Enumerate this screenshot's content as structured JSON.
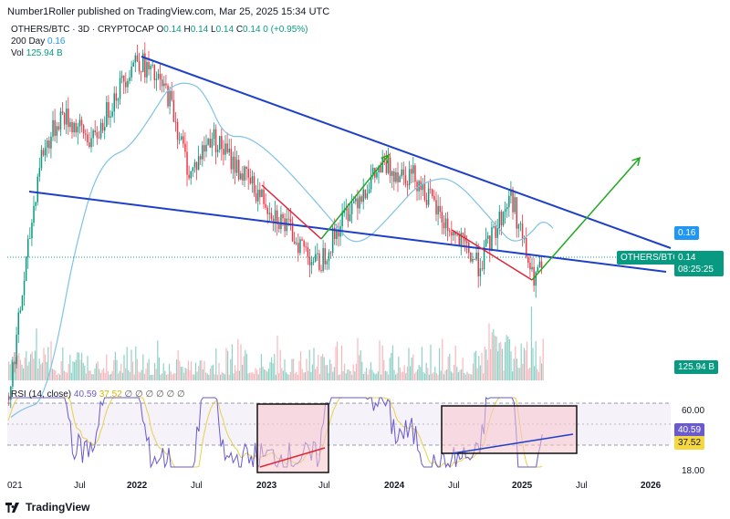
{
  "header": {
    "publisher": "Number1Roller published on TradingView.com, Mar 25, 2025 15:34 UTC"
  },
  "legend": {
    "symbol": "OTHERS/BTC · 3D · CRYPTOCAP",
    "o_label": "O",
    "o": "0.14",
    "h_label": "H",
    "h": "0.14",
    "l_label": "L",
    "l": "0.14",
    "c_label": "C",
    "c": "0.14",
    "change": "0 (+0.95%)",
    "ma_label": "200 Day",
    "ma_value": "0.16",
    "vol_label": "Vol",
    "vol_value": "125.94 B"
  },
  "price_tags": {
    "ma": "0.16",
    "symbol": "OTHERS/BTC",
    "price": "0.14",
    "countdown": "08:25:25",
    "volume": "125.94 B"
  },
  "rsi": {
    "label": "RSI (14, close)",
    "value": "40.59",
    "ma": "37.52",
    "dots": "∅ ∅ ∅ ∅ ∅ ∅",
    "levels": [
      "60.00",
      "18.00"
    ]
  },
  "x_axis": [
    "021",
    "Jul",
    "2022",
    "Jul",
    "2023",
    "Jul",
    "2024",
    "Jul",
    "2025",
    "Jul",
    "2026"
  ],
  "footer": {
    "brand": "TradingView"
  },
  "colors": {
    "up": "#089981",
    "down": "#f23645",
    "trend": "#1e40c8",
    "ma": "#7ec3e6",
    "green_arrow": "#22a722",
    "red_line": "#e0243a",
    "rsi": "#6a5acd",
    "rsi_ma": "#e8d04a"
  },
  "chart_data": {
    "type": "candlestick",
    "title": "OTHERS/BTC · 3D · CRYPTOCAP",
    "x_range": [
      "2021-01",
      "2026-03"
    ],
    "y_range_log": [
      0.05,
      0.5
    ],
    "price_anchors": [
      {
        "t": "2021-01",
        "v": 0.07
      },
      {
        "t": "2021-04",
        "v": 0.24
      },
      {
        "t": "2021-06",
        "v": 0.3
      },
      {
        "t": "2021-09",
        "v": 0.26
      },
      {
        "t": "2021-11",
        "v": 0.33
      },
      {
        "t": "2022-01",
        "v": 0.4
      },
      {
        "t": "2022-04",
        "v": 0.33
      },
      {
        "t": "2022-06",
        "v": 0.22
      },
      {
        "t": "2022-08",
        "v": 0.27
      },
      {
        "t": "2022-11",
        "v": 0.22
      },
      {
        "t": "2023-03",
        "v": 0.17
      },
      {
        "t": "2023-06",
        "v": 0.14
      },
      {
        "t": "2023-09",
        "v": 0.19
      },
      {
        "t": "2023-12",
        "v": 0.23
      },
      {
        "t": "2024-03",
        "v": 0.22
      },
      {
        "t": "2024-06",
        "v": 0.17
      },
      {
        "t": "2024-09",
        "v": 0.14
      },
      {
        "t": "2024-12",
        "v": 0.2
      },
      {
        "t": "2025-02",
        "v": 0.13
      },
      {
        "t": "2025-03",
        "v": 0.14
      }
    ],
    "ma200_value": 0.16,
    "rsi_levels": [
      60,
      18
    ],
    "rsi_last": 40.59,
    "rsi_ma_last": 37.52
  }
}
